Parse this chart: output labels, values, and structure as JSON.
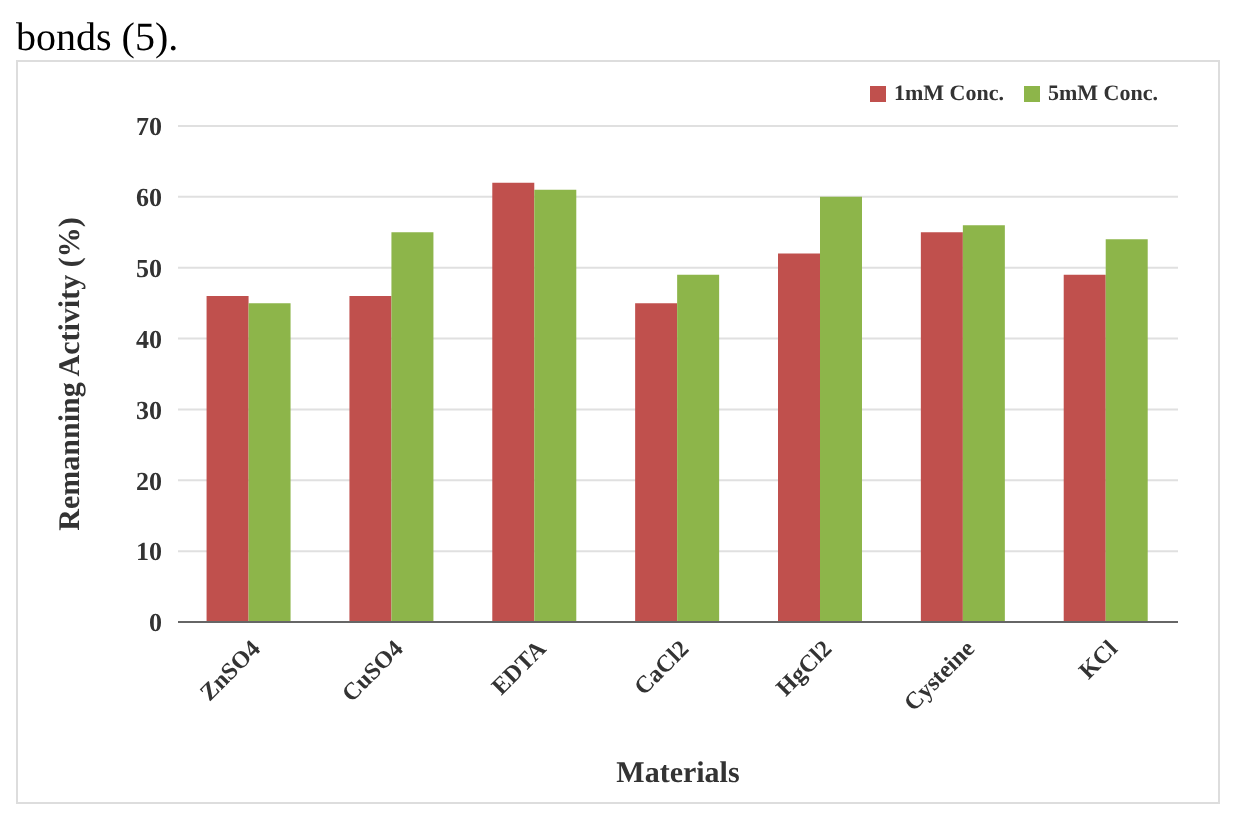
{
  "chart_data": {
    "type": "bar",
    "xlabel": "Materials",
    "ylabel": "Remanning Activity (%)",
    "annotations": [
      "bonds (5)."
    ],
    "categories": [
      "ZnSO4",
      "CuSO4",
      "EDTA",
      "CaCl2",
      "HgCl2",
      "Cysteine",
      "KCl"
    ],
    "series": [
      {
        "name": "1mM Conc.",
        "color": "#c0504d",
        "values": [
          46,
          46,
          62,
          45,
          52,
          55,
          49
        ]
      },
      {
        "name": "5mM Conc.",
        "color": "#8db54a",
        "values": [
          45,
          55,
          61,
          49,
          60,
          56,
          54
        ]
      }
    ],
    "ylim": [
      0,
      70
    ],
    "yticks": [
      0,
      10,
      20,
      30,
      40,
      50,
      60,
      70
    ],
    "grid": "y",
    "legend": "top right"
  }
}
